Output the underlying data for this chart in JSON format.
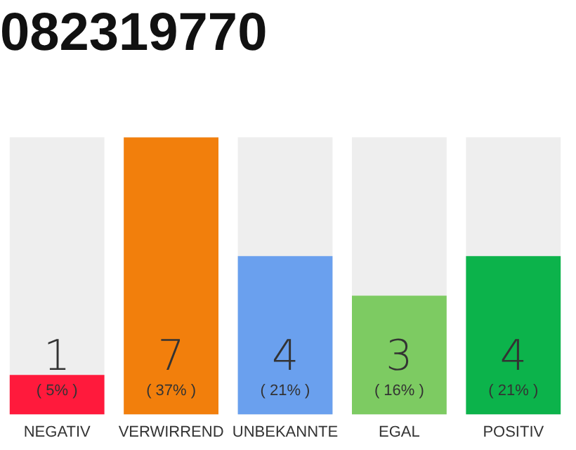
{
  "chart_data": {
    "type": "bar",
    "title": "082319770",
    "categories": [
      "NEGATIV",
      "VERWIRREND",
      "UNBEKANNTE",
      "EGAL",
      "POSITIV"
    ],
    "values": [
      1,
      7,
      4,
      3,
      4
    ],
    "colors": [
      "#ff1a3c",
      "#f27f0c",
      "#6aa0ee",
      "#7dcb62",
      "#0cb34b"
    ],
    "data_labels": true,
    "tick_labels": "x",
    "grid": false,
    "legend": false,
    "annotations": [
      "( 5% )",
      "( 37% )",
      "( 21% )",
      "( 16% )",
      "( 21% )"
    ]
  }
}
